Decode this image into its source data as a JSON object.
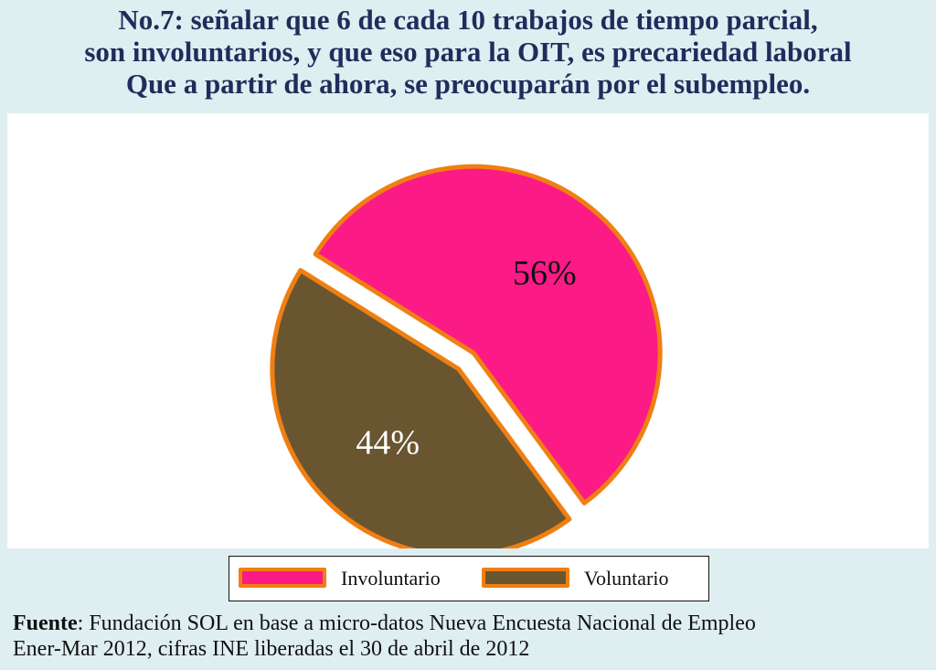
{
  "title_lines": [
    "No.7: señalar que 6 de cada 10 trabajos de tiempo parcial,",
    "son involuntarios, y que eso para la OIT, es precariedad laboral",
    "Que a partir de ahora, se preocuparán por el subempleo."
  ],
  "colors": {
    "background": "#dfeef1",
    "title": "#1f2d5c",
    "involuntario": "#fb1a86",
    "voluntario": "#6a5531",
    "slice_border": "#f07f12"
  },
  "chart_data": {
    "type": "pie",
    "slices": [
      {
        "name": "Involuntario",
        "value": 56,
        "label": "56%",
        "color": "#fb1a86",
        "label_color": "#111111",
        "exploded": true
      },
      {
        "name": "Voluntario",
        "value": 44,
        "label": "44%",
        "color": "#6a5531",
        "label_color": "#ffffff",
        "exploded": true
      }
    ],
    "legend_position": "bottom"
  },
  "legend": {
    "items": [
      {
        "label": "Involuntario",
        "color": "#fb1a86"
      },
      {
        "label": "Voluntario",
        "color": "#6a5531"
      }
    ]
  },
  "source": {
    "label": "Fuente",
    "line1_rest": ": Fundación SOL en base a micro-datos Nueva Encuesta Nacional de Empleo",
    "line2": "Ener-Mar 2012, cifras INE liberadas el 30 de abril de 2012"
  }
}
